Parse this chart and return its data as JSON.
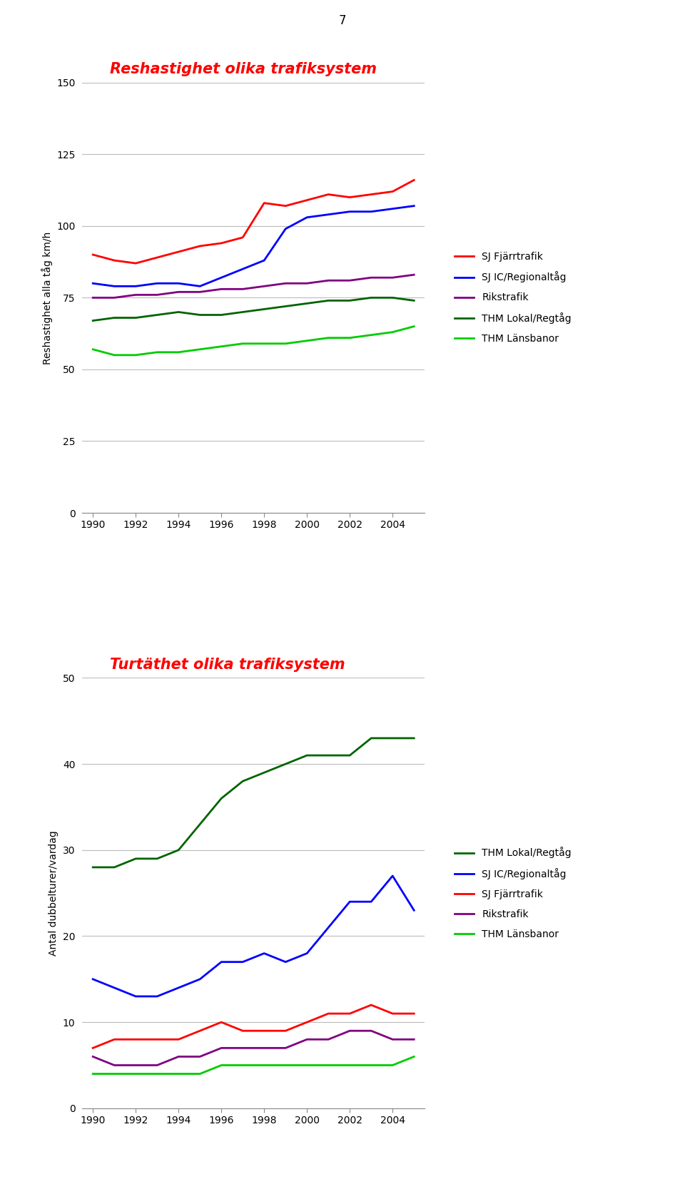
{
  "page_number": "7",
  "chart1": {
    "title": "Reshastighet olika trafiksystem",
    "ylabel": "Reshastighet alla tåg km/h",
    "ylim": [
      0,
      150
    ],
    "yticks": [
      0,
      25,
      50,
      75,
      100,
      125,
      150
    ],
    "years": [
      1990,
      1991,
      1992,
      1993,
      1994,
      1995,
      1996,
      1997,
      1998,
      1999,
      2000,
      2001,
      2002,
      2003,
      2004,
      2005
    ],
    "series": {
      "SJ Fjärrtrafik": {
        "color": "#ff0000",
        "values": [
          90,
          88,
          87,
          89,
          91,
          93,
          94,
          96,
          108,
          107,
          109,
          111,
          110,
          111,
          112,
          116
        ]
      },
      "SJ IC/Regionaltåg": {
        "color": "#0000ff",
        "values": [
          80,
          79,
          79,
          80,
          80,
          79,
          82,
          85,
          88,
          99,
          103,
          104,
          105,
          105,
          106,
          107
        ]
      },
      "Rikstrafik": {
        "color": "#800080",
        "values": [
          75,
          75,
          76,
          76,
          77,
          77,
          78,
          78,
          79,
          80,
          80,
          81,
          81,
          82,
          82,
          83
        ]
      },
      "THM Lokal/Regtåg": {
        "color": "#006400",
        "values": [
          67,
          68,
          68,
          69,
          70,
          69,
          69,
          70,
          71,
          72,
          73,
          74,
          74,
          75,
          75,
          74
        ]
      },
      "THM Länsbanor": {
        "color": "#00cc00",
        "values": [
          57,
          55,
          55,
          56,
          56,
          57,
          58,
          59,
          59,
          59,
          60,
          61,
          61,
          62,
          63,
          65
        ]
      }
    },
    "legend_order": [
      "SJ Fjärrtrafik",
      "SJ IC/Regionaltåg",
      "Rikstrafik",
      "THM Lokal/Regtåg",
      "THM Länsbanor"
    ]
  },
  "chart2": {
    "title": "Turtäthet olika trafiksystem",
    "ylabel": "Antal dubbelturer/vardag",
    "ylim": [
      0,
      50
    ],
    "yticks": [
      0,
      10,
      20,
      30,
      40,
      50
    ],
    "years": [
      1990,
      1991,
      1992,
      1993,
      1994,
      1995,
      1996,
      1997,
      1998,
      1999,
      2000,
      2001,
      2002,
      2003,
      2004,
      2005
    ],
    "series": {
      "THM Lokal/Regtåg": {
        "color": "#006400",
        "values": [
          28,
          28,
          29,
          29,
          30,
          33,
          36,
          38,
          39,
          40,
          41,
          41,
          41,
          43,
          43,
          43
        ]
      },
      "SJ IC/Regionaltåg": {
        "color": "#0000ff",
        "values": [
          15,
          14,
          13,
          13,
          14,
          15,
          17,
          17,
          18,
          17,
          18,
          21,
          24,
          24,
          27,
          23
        ]
      },
      "SJ Fjärrtrafik": {
        "color": "#ff0000",
        "values": [
          7,
          8,
          8,
          8,
          8,
          9,
          10,
          9,
          9,
          9,
          10,
          11,
          11,
          12,
          11,
          11
        ]
      },
      "Rikstrafik": {
        "color": "#800080",
        "values": [
          6,
          5,
          5,
          5,
          6,
          6,
          7,
          7,
          7,
          7,
          8,
          8,
          9,
          9,
          8,
          8
        ]
      },
      "THM Länsbanor": {
        "color": "#00cc00",
        "values": [
          4,
          4,
          4,
          4,
          4,
          4,
          5,
          5,
          5,
          5,
          5,
          5,
          5,
          5,
          5,
          6
        ]
      }
    },
    "legend_order": [
      "THM Lokal/Regtåg",
      "SJ IC/Regionaltåg",
      "SJ Fjärrtrafik",
      "Rikstrafik",
      "THM Länsbanor"
    ]
  },
  "background_color": "#ffffff",
  "title_color": "#ff0000",
  "title_fontsize": 15,
  "axis_label_fontsize": 10,
  "tick_fontsize": 10,
  "legend_fontsize": 10,
  "line_width": 2.0,
  "xticks": [
    1990,
    1992,
    1994,
    1996,
    1998,
    2000,
    2002,
    2004
  ],
  "xlim": [
    1989.5,
    2005.5
  ]
}
